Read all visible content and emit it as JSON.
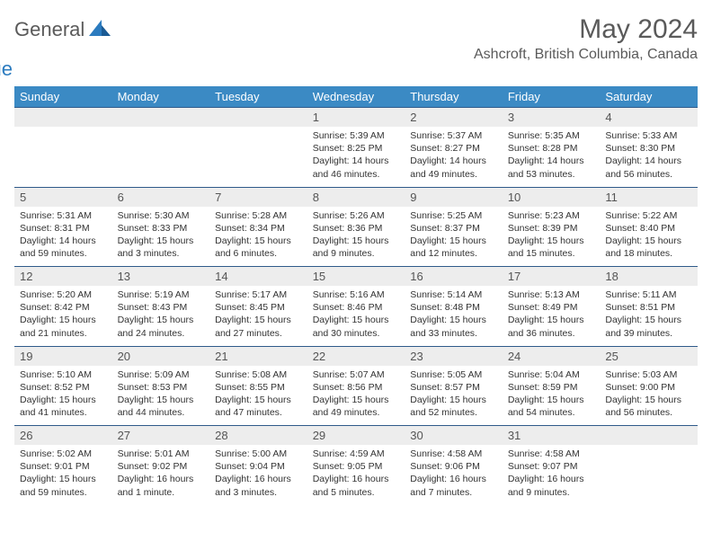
{
  "brand": {
    "general": "General",
    "blue": "Blue"
  },
  "title": "May 2024",
  "location": "Ashcroft, British Columbia, Canada",
  "colors": {
    "header_bg": "#3b8ac4",
    "header_text": "#ffffff",
    "daynum_bg": "#ededed",
    "row_border": "#2f5a8a",
    "text": "#333333",
    "logo_blue": "#2b7bbf",
    "logo_gray": "#5a5a5a"
  },
  "weekdays": [
    "Sunday",
    "Monday",
    "Tuesday",
    "Wednesday",
    "Thursday",
    "Friday",
    "Saturday"
  ],
  "weeks": [
    [
      null,
      null,
      null,
      {
        "n": "1",
        "sr": "5:39 AM",
        "ss": "8:25 PM",
        "dl": "14 hours and 46 minutes."
      },
      {
        "n": "2",
        "sr": "5:37 AM",
        "ss": "8:27 PM",
        "dl": "14 hours and 49 minutes."
      },
      {
        "n": "3",
        "sr": "5:35 AM",
        "ss": "8:28 PM",
        "dl": "14 hours and 53 minutes."
      },
      {
        "n": "4",
        "sr": "5:33 AM",
        "ss": "8:30 PM",
        "dl": "14 hours and 56 minutes."
      }
    ],
    [
      {
        "n": "5",
        "sr": "5:31 AM",
        "ss": "8:31 PM",
        "dl": "14 hours and 59 minutes."
      },
      {
        "n": "6",
        "sr": "5:30 AM",
        "ss": "8:33 PM",
        "dl": "15 hours and 3 minutes."
      },
      {
        "n": "7",
        "sr": "5:28 AM",
        "ss": "8:34 PM",
        "dl": "15 hours and 6 minutes."
      },
      {
        "n": "8",
        "sr": "5:26 AM",
        "ss": "8:36 PM",
        "dl": "15 hours and 9 minutes."
      },
      {
        "n": "9",
        "sr": "5:25 AM",
        "ss": "8:37 PM",
        "dl": "15 hours and 12 minutes."
      },
      {
        "n": "10",
        "sr": "5:23 AM",
        "ss": "8:39 PM",
        "dl": "15 hours and 15 minutes."
      },
      {
        "n": "11",
        "sr": "5:22 AM",
        "ss": "8:40 PM",
        "dl": "15 hours and 18 minutes."
      }
    ],
    [
      {
        "n": "12",
        "sr": "5:20 AM",
        "ss": "8:42 PM",
        "dl": "15 hours and 21 minutes."
      },
      {
        "n": "13",
        "sr": "5:19 AM",
        "ss": "8:43 PM",
        "dl": "15 hours and 24 minutes."
      },
      {
        "n": "14",
        "sr": "5:17 AM",
        "ss": "8:45 PM",
        "dl": "15 hours and 27 minutes."
      },
      {
        "n": "15",
        "sr": "5:16 AM",
        "ss": "8:46 PM",
        "dl": "15 hours and 30 minutes."
      },
      {
        "n": "16",
        "sr": "5:14 AM",
        "ss": "8:48 PM",
        "dl": "15 hours and 33 minutes."
      },
      {
        "n": "17",
        "sr": "5:13 AM",
        "ss": "8:49 PM",
        "dl": "15 hours and 36 minutes."
      },
      {
        "n": "18",
        "sr": "5:11 AM",
        "ss": "8:51 PM",
        "dl": "15 hours and 39 minutes."
      }
    ],
    [
      {
        "n": "19",
        "sr": "5:10 AM",
        "ss": "8:52 PM",
        "dl": "15 hours and 41 minutes."
      },
      {
        "n": "20",
        "sr": "5:09 AM",
        "ss": "8:53 PM",
        "dl": "15 hours and 44 minutes."
      },
      {
        "n": "21",
        "sr": "5:08 AM",
        "ss": "8:55 PM",
        "dl": "15 hours and 47 minutes."
      },
      {
        "n": "22",
        "sr": "5:07 AM",
        "ss": "8:56 PM",
        "dl": "15 hours and 49 minutes."
      },
      {
        "n": "23",
        "sr": "5:05 AM",
        "ss": "8:57 PM",
        "dl": "15 hours and 52 minutes."
      },
      {
        "n": "24",
        "sr": "5:04 AM",
        "ss": "8:59 PM",
        "dl": "15 hours and 54 minutes."
      },
      {
        "n": "25",
        "sr": "5:03 AM",
        "ss": "9:00 PM",
        "dl": "15 hours and 56 minutes."
      }
    ],
    [
      {
        "n": "26",
        "sr": "5:02 AM",
        "ss": "9:01 PM",
        "dl": "15 hours and 59 minutes."
      },
      {
        "n": "27",
        "sr": "5:01 AM",
        "ss": "9:02 PM",
        "dl": "16 hours and 1 minute."
      },
      {
        "n": "28",
        "sr": "5:00 AM",
        "ss": "9:04 PM",
        "dl": "16 hours and 3 minutes."
      },
      {
        "n": "29",
        "sr": "4:59 AM",
        "ss": "9:05 PM",
        "dl": "16 hours and 5 minutes."
      },
      {
        "n": "30",
        "sr": "4:58 AM",
        "ss": "9:06 PM",
        "dl": "16 hours and 7 minutes."
      },
      {
        "n": "31",
        "sr": "4:58 AM",
        "ss": "9:07 PM",
        "dl": "16 hours and 9 minutes."
      },
      null
    ]
  ],
  "labels": {
    "sunrise": "Sunrise:",
    "sunset": "Sunset:",
    "daylight": "Daylight:"
  }
}
